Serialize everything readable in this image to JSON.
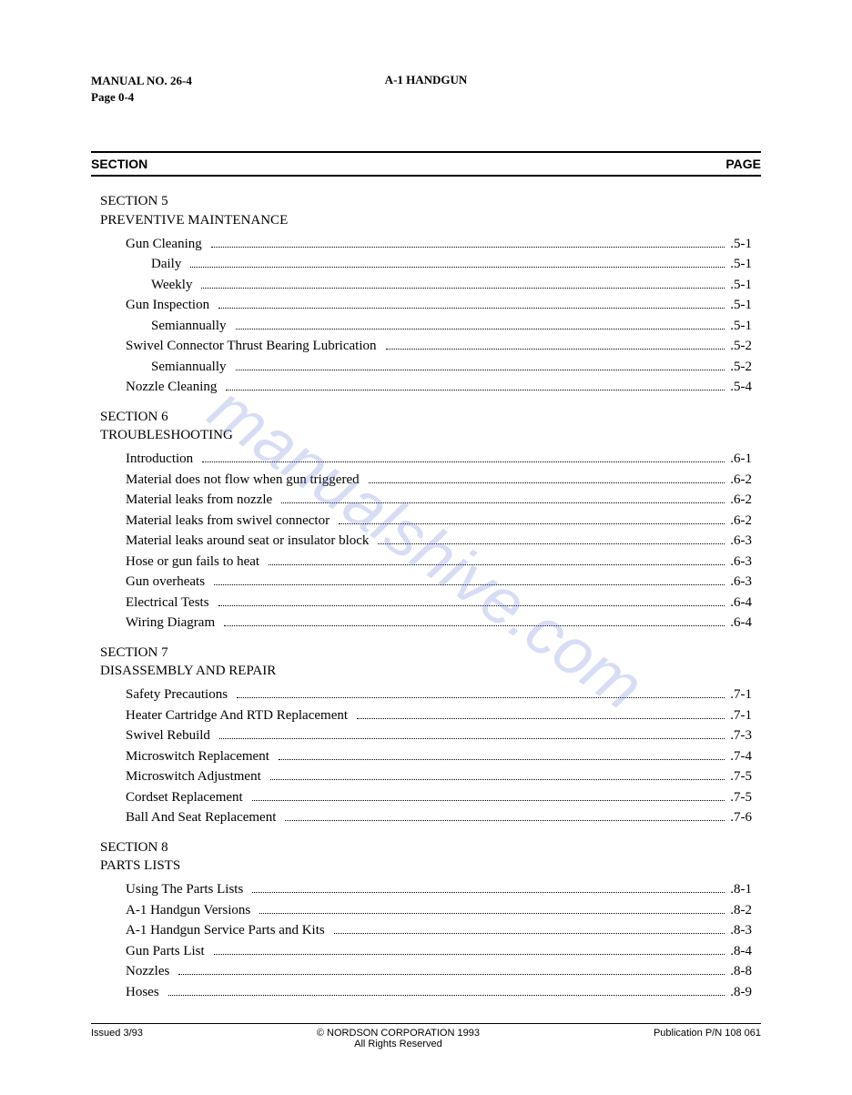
{
  "header": {
    "manual_no": "MANUAL NO. 26-4",
    "page_no": "Page 0-4",
    "title": "A-1 HANDGUN"
  },
  "column_headers": {
    "section": "SECTION",
    "page": "PAGE"
  },
  "sections": [
    {
      "number": "SECTION 5",
      "title": "PREVENTIVE MAINTENANCE",
      "entries": [
        {
          "label": "Gun Cleaning",
          "page": ".5-1",
          "indent": 1
        },
        {
          "label": "Daily",
          "page": ".5-1",
          "indent": 2
        },
        {
          "label": "Weekly",
          "page": ".5-1",
          "indent": 2
        },
        {
          "label": "Gun Inspection",
          "page": ".5-1",
          "indent": 1
        },
        {
          "label": "Semiannually",
          "page": ".5-1",
          "indent": 2
        },
        {
          "label": "Swivel Connector Thrust Bearing Lubrication",
          "page": ".5-2",
          "indent": 1
        },
        {
          "label": "Semiannually",
          "page": ".5-2",
          "indent": 2
        },
        {
          "label": "Nozzle Cleaning",
          "page": ".5-4",
          "indent": 1
        }
      ]
    },
    {
      "number": "SECTION 6",
      "title": "TROUBLESHOOTING",
      "entries": [
        {
          "label": "Introduction",
          "page": ".6-1",
          "indent": 1
        },
        {
          "label": "Material does not flow when gun triggered",
          "page": ".6-2",
          "indent": 1
        },
        {
          "label": "Material leaks from nozzle",
          "page": ".6-2",
          "indent": 1
        },
        {
          "label": "Material leaks from swivel connector",
          "page": ".6-2",
          "indent": 1
        },
        {
          "label": "Material leaks around seat or insulator block",
          "page": ".6-3",
          "indent": 1
        },
        {
          "label": "Hose or gun fails to heat",
          "page": ".6-3",
          "indent": 1
        },
        {
          "label": "Gun overheats",
          "page": ".6-3",
          "indent": 1
        },
        {
          "label": "Electrical Tests",
          "page": ".6-4",
          "indent": 1
        },
        {
          "label": "Wiring Diagram",
          "page": ".6-4",
          "indent": 1
        }
      ]
    },
    {
      "number": "SECTION 7",
      "title": "DISASSEMBLY AND REPAIR",
      "entries": [
        {
          "label": "Safety Precautions",
          "page": ".7-1",
          "indent": 1
        },
        {
          "label": "Heater Cartridge And RTD Replacement",
          "page": ".7-1",
          "indent": 1
        },
        {
          "label": "Swivel Rebuild",
          "page": ".7-3",
          "indent": 1
        },
        {
          "label": "Microswitch Replacement",
          "page": ".7-4",
          "indent": 1
        },
        {
          "label": "Microswitch Adjustment",
          "page": ".7-5",
          "indent": 1
        },
        {
          "label": "Cordset Replacement",
          "page": ".7-5",
          "indent": 1
        },
        {
          "label": "Ball And Seat Replacement",
          "page": ".7-6",
          "indent": 1
        }
      ]
    },
    {
      "number": "SECTION 8",
      "title": "PARTS LISTS",
      "entries": [
        {
          "label": "Using The Parts Lists",
          "page": ".8-1",
          "indent": 1
        },
        {
          "label": "A-1 Handgun Versions",
          "page": ".8-2",
          "indent": 1
        },
        {
          "label": "A-1 Handgun Service Parts and Kits",
          "page": ".8-3",
          "indent": 1
        },
        {
          "label": "Gun Parts List",
          "page": ".8-4",
          "indent": 1
        },
        {
          "label": "Nozzles",
          "page": ".8-8",
          "indent": 1
        },
        {
          "label": "Hoses",
          "page": ".8-9",
          "indent": 1
        }
      ]
    }
  ],
  "footer": {
    "issued": "Issued 3/93",
    "copyright": "© NORDSON CORPORATION 1993",
    "rights": "All Rights Reserved",
    "publication": "Publication P/N 108 061"
  },
  "watermark": "manualshive.com"
}
